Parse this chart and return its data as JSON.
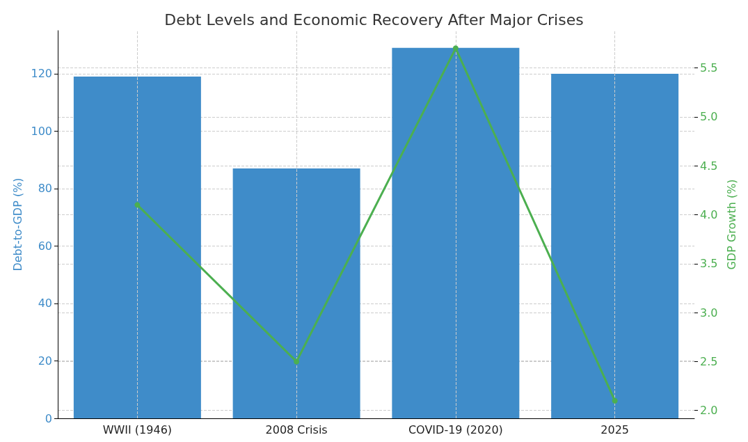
{
  "chart_data": {
    "type": "bar",
    "title": "Debt Levels and Economic Recovery After Major Crises",
    "categories": [
      "WWII (1946)",
      "2008 Crisis",
      "COVID-19 (2020)",
      "2025"
    ],
    "ylabel": "Debt-to-GDP (%)",
    "y2label": "GDP Growth (%)",
    "series": [
      {
        "color": "#3f8cc9",
        "values": [
          119,
          87,
          129,
          120
        ]
      },
      {
        "type": "line",
        "axis": "y2",
        "color": "#4caf50",
        "values": [
          4.1,
          2.5,
          5.7,
          2.1
        ]
      }
    ],
    "ylim": [
      0,
      135
    ],
    "yticks": [
      0,
      20,
      40,
      60,
      80,
      100,
      120
    ],
    "y2lim": [
      1.92,
      5.88
    ],
    "y2ticks": [
      {
        "value": 2,
        "label": "2.0"
      },
      2.5,
      {
        "value": 3,
        "label": "3.0"
      },
      3.5,
      {
        "value": 4,
        "label": "4.0"
      },
      4.5,
      {
        "value": 5,
        "label": "5.0"
      },
      5.5
    ],
    "grid": true,
    "marker": "circle",
    "line_style": "solid"
  }
}
